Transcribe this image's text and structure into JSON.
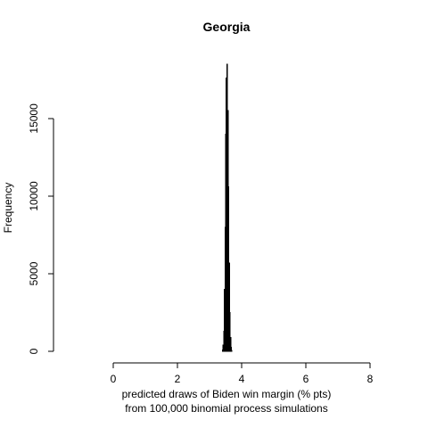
{
  "chart_data": {
    "type": "bar",
    "title": "Georgia",
    "xlabel": "predicted draws of Biden win margin (% pts)",
    "xlabel_line2": "from 100,000 binomial process simulations",
    "ylabel": "Frequency",
    "xlim": [
      0,
      8
    ],
    "ylim": [
      0,
      18500
    ],
    "x_ticks": [
      0,
      2,
      4,
      6,
      8
    ],
    "y_ticks": [
      0,
      5000,
      10000,
      15000
    ],
    "grid": false,
    "bins": [
      {
        "x0": 3.4,
        "x1": 3.42,
        "value": 80
      },
      {
        "x0": 3.42,
        "x1": 3.44,
        "value": 400
      },
      {
        "x0": 3.44,
        "x1": 3.46,
        "value": 1300
      },
      {
        "x0": 3.46,
        "x1": 3.48,
        "value": 4000
      },
      {
        "x0": 3.48,
        "x1": 3.5,
        "value": 8000
      },
      {
        "x0": 3.5,
        "x1": 3.52,
        "value": 14000
      },
      {
        "x0": 3.52,
        "x1": 3.54,
        "value": 17600
      },
      {
        "x0": 3.54,
        "x1": 3.56,
        "value": 18500
      },
      {
        "x0": 3.56,
        "x1": 3.58,
        "value": 15500
      },
      {
        "x0": 3.58,
        "x1": 3.6,
        "value": 10600
      },
      {
        "x0": 3.6,
        "x1": 3.62,
        "value": 5700
      },
      {
        "x0": 3.62,
        "x1": 3.64,
        "value": 2500
      },
      {
        "x0": 3.64,
        "x1": 3.66,
        "value": 900
      },
      {
        "x0": 3.66,
        "x1": 3.68,
        "value": 250
      },
      {
        "x0": 3.68,
        "x1": 3.7,
        "value": 60
      }
    ]
  }
}
